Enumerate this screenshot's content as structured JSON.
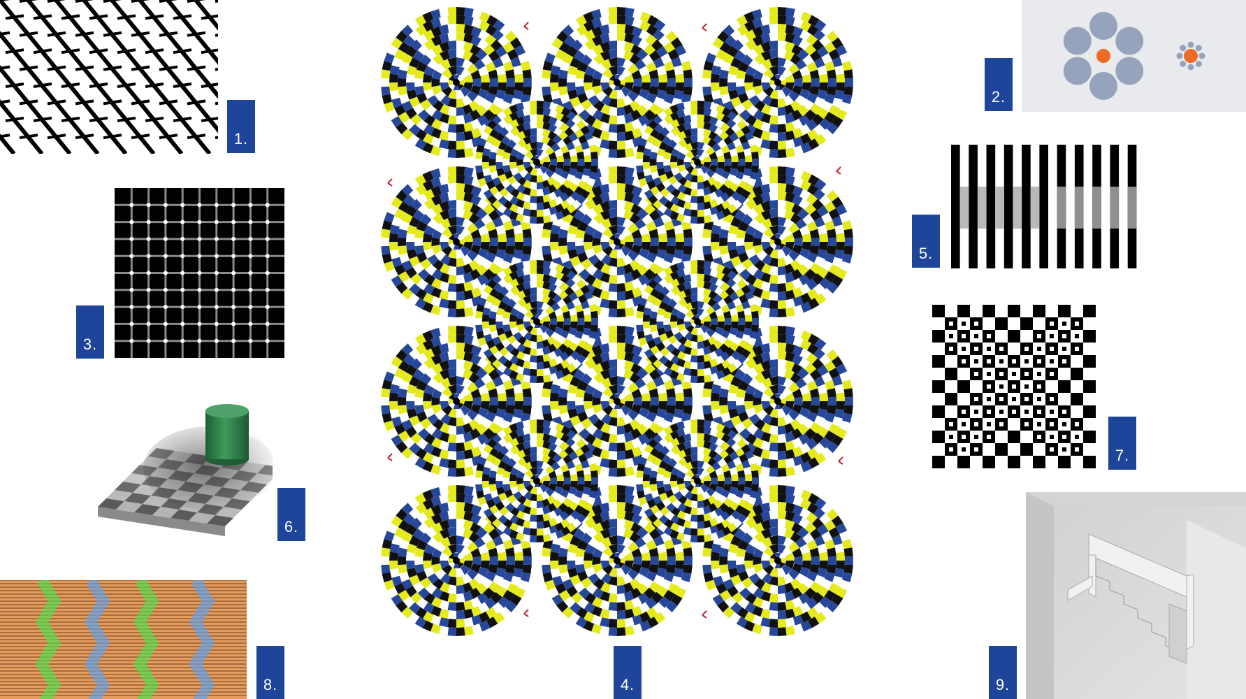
{
  "labels": {
    "one": "1.",
    "two": "2.",
    "three": "3.",
    "four": "4.",
    "five": "5.",
    "six": "6.",
    "seven": "7.",
    "eight": "8.",
    "nine": "9."
  },
  "colors": {
    "label_background": "#1e4599",
    "label_text": "#ffffff",
    "snake_blue": "#27479b",
    "snake_yellow": "#e4ea1c",
    "snake_black": "#111111",
    "snake_white": "#ffffff",
    "ebbinghaus_gray": "#95a3bd",
    "ebbinghaus_orange": "#ee6b26",
    "cylinder_green": "#2f7d49",
    "zigzag_orange": "#e59b5c",
    "zigzag_green": "#7acd52",
    "zigzag_blue": "#86a1c6"
  }
}
